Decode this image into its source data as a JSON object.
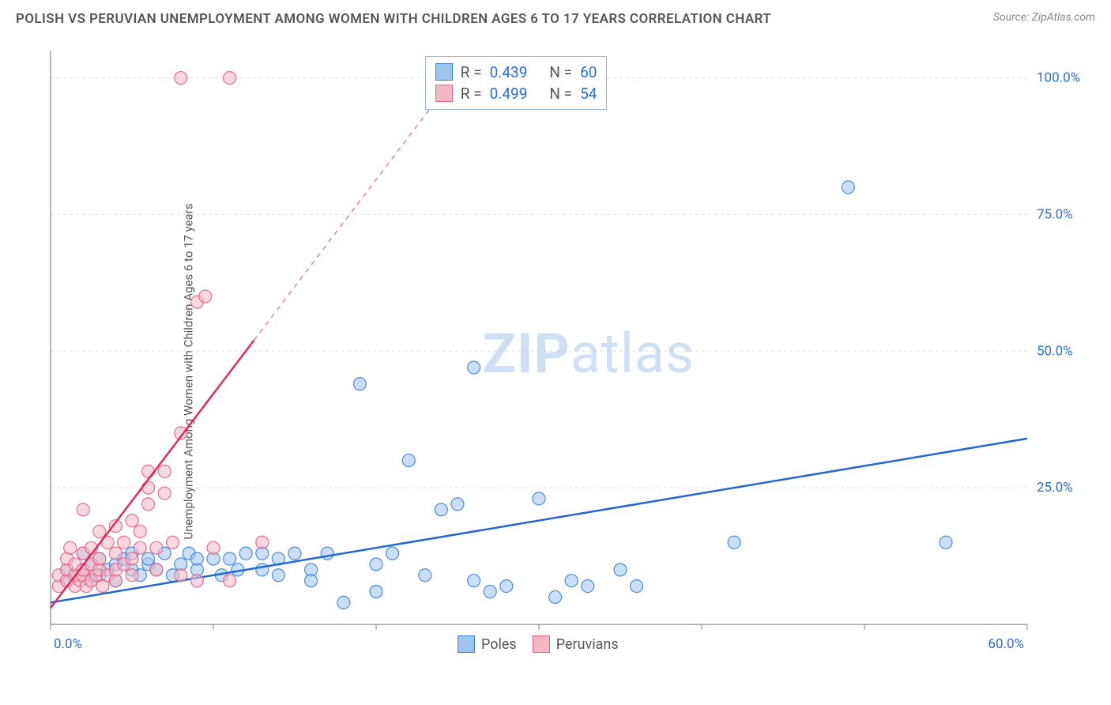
{
  "title": "POLISH VS PERUVIAN UNEMPLOYMENT AMONG WOMEN WITH CHILDREN AGES 6 TO 17 YEARS CORRELATION CHART",
  "source": "Source: ZipAtlas.com",
  "y_axis_label": "Unemployment Among Women with Children Ages 6 to 17 years",
  "watermark_bold": "ZIP",
  "watermark_rest": "atlas",
  "chart": {
    "type": "scatter",
    "background_color": "#ffffff",
    "grid_color": "#e0e0e0",
    "axis_color": "#888888",
    "xlim": [
      0,
      60
    ],
    "ylim": [
      0,
      105
    ],
    "x_ticks": [
      0,
      10,
      20,
      30,
      40,
      50,
      60
    ],
    "x_tick_labels": [
      "0.0%",
      "",
      "",
      "",
      "",
      "",
      "60.0%"
    ],
    "y_ticks": [
      25,
      50,
      75,
      100
    ],
    "y_tick_labels": [
      "25.0%",
      "50.0%",
      "75.0%",
      "100.0%"
    ],
    "x_tick_label_color": "#2a6dd6",
    "y_tick_label_color": "#2a6dd6",
    "marker_radius": 8,
    "marker_opacity": 0.55,
    "marker_stroke_opacity": 0.9,
    "line_width": 2.5,
    "series": [
      {
        "name": "Poles",
        "color_fill": "#9ec5f0",
        "color_stroke": "#3b82d6",
        "line_color": "#1f68d0",
        "r": "0.439",
        "n": "60",
        "trend": {
          "x1": 0,
          "y1": 4,
          "x2": 60,
          "y2": 34
        },
        "trend_dash": null,
        "points": [
          [
            1,
            8
          ],
          [
            1,
            10
          ],
          [
            1.5,
            9
          ],
          [
            2,
            10
          ],
          [
            2,
            13
          ],
          [
            2.5,
            8
          ],
          [
            2.5,
            11
          ],
          [
            3,
            9
          ],
          [
            3,
            12
          ],
          [
            3.5,
            10
          ],
          [
            4,
            11
          ],
          [
            4,
            8
          ],
          [
            4.5,
            12
          ],
          [
            5,
            10
          ],
          [
            5,
            13
          ],
          [
            5.5,
            9
          ],
          [
            6,
            11
          ],
          [
            6,
            12
          ],
          [
            6.5,
            10
          ],
          [
            7,
            13
          ],
          [
            7.5,
            9
          ],
          [
            8,
            11
          ],
          [
            8.5,
            13
          ],
          [
            9,
            10
          ],
          [
            9,
            12
          ],
          [
            10,
            12
          ],
          [
            10.5,
            9
          ],
          [
            11,
            12
          ],
          [
            11.5,
            10
          ],
          [
            12,
            13
          ],
          [
            13,
            10
          ],
          [
            13,
            13
          ],
          [
            14,
            12
          ],
          [
            14,
            9
          ],
          [
            15,
            13
          ],
          [
            16,
            10
          ],
          [
            16,
            8
          ],
          [
            17,
            13
          ],
          [
            18,
            4
          ],
          [
            19,
            44
          ],
          [
            20,
            11
          ],
          [
            20,
            6
          ],
          [
            21,
            13
          ],
          [
            22,
            30
          ],
          [
            23,
            9
          ],
          [
            24,
            21
          ],
          [
            25,
            22
          ],
          [
            26,
            8
          ],
          [
            26,
            47
          ],
          [
            27,
            6
          ],
          [
            28,
            7
          ],
          [
            30,
            23
          ],
          [
            31,
            5
          ],
          [
            32,
            8
          ],
          [
            33,
            7
          ],
          [
            35,
            10
          ],
          [
            36,
            7
          ],
          [
            42,
            15
          ],
          [
            49,
            80
          ],
          [
            55,
            15
          ]
        ]
      },
      {
        "name": "Peruvians",
        "color_fill": "#f4b8c4",
        "color_stroke": "#e85f83",
        "line_color": "#e02a5e",
        "r": "0.499",
        "n": "54",
        "trend": {
          "x1": 0,
          "y1": 3,
          "x2": 12.5,
          "y2": 52
        },
        "trend_dash": {
          "x1": 12.5,
          "y1": 52,
          "x2": 25,
          "y2": 101
        },
        "points": [
          [
            0.5,
            7
          ],
          [
            0.5,
            9
          ],
          [
            1,
            8
          ],
          [
            1,
            10
          ],
          [
            1,
            12
          ],
          [
            1.2,
            14
          ],
          [
            1.5,
            7
          ],
          [
            1.5,
            9
          ],
          [
            1.5,
            11
          ],
          [
            1.8,
            8
          ],
          [
            2,
            9
          ],
          [
            2,
            10
          ],
          [
            2,
            13
          ],
          [
            2,
            21
          ],
          [
            2.2,
            7
          ],
          [
            2.5,
            8
          ],
          [
            2.5,
            11
          ],
          [
            2.5,
            14
          ],
          [
            2.8,
            9
          ],
          [
            3,
            10
          ],
          [
            3,
            12
          ],
          [
            3,
            17
          ],
          [
            3.2,
            7
          ],
          [
            3.5,
            9
          ],
          [
            3.5,
            15
          ],
          [
            4,
            8
          ],
          [
            4,
            10
          ],
          [
            4,
            13
          ],
          [
            4,
            18
          ],
          [
            4.5,
            11
          ],
          [
            4.5,
            15
          ],
          [
            5,
            9
          ],
          [
            5,
            12
          ],
          [
            5,
            19
          ],
          [
            5.5,
            14
          ],
          [
            5.5,
            17
          ],
          [
            6,
            22
          ],
          [
            6,
            25
          ],
          [
            6,
            28
          ],
          [
            6.5,
            10
          ],
          [
            6.5,
            14
          ],
          [
            7,
            24
          ],
          [
            7,
            28
          ],
          [
            7.5,
            15
          ],
          [
            8,
            9
          ],
          [
            8,
            35
          ],
          [
            8,
            100
          ],
          [
            9,
            8
          ],
          [
            9,
            59
          ],
          [
            9.5,
            60
          ],
          [
            10,
            14
          ],
          [
            11,
            8
          ],
          [
            11,
            100
          ],
          [
            13,
            15
          ]
        ]
      }
    ]
  },
  "legend": {
    "series1": "Poles",
    "series2": "Peruvians"
  },
  "stats_labels": {
    "r": "R =",
    "n": "N ="
  }
}
